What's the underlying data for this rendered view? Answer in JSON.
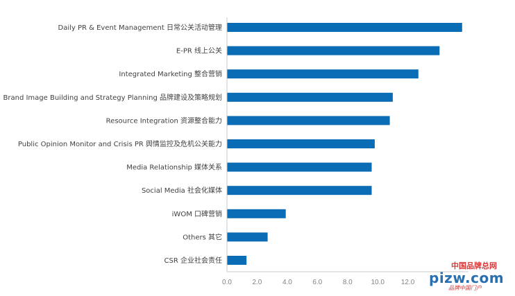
{
  "chart_data": {
    "type": "bar",
    "orientation": "horizontal",
    "categories": [
      "Daily PR & Event Management 日常公关活动管理",
      "E-PR 线上公关",
      "Integrated Marketing 整合营销",
      "Brand Image Building and Strategy Planning 品牌建设及策略规划",
      "Resource Integration 资源整合能力",
      "Public Opinion Monitor and Crisis PR 舆情监控及危机公关能力",
      "Media Relationship 媒体关系",
      "Social Media 社会化媒体",
      "iWOM 口碑营销",
      "Others 其它",
      "CSR 企业社会责任"
    ],
    "values": [
      15.6,
      14.1,
      12.7,
      11.0,
      10.8,
      9.8,
      9.6,
      9.6,
      3.9,
      2.7,
      1.3
    ],
    "xlim": [
      0,
      16
    ],
    "xticks": [
      "0.0",
      "2.0",
      "4.0",
      "6.0",
      "8.0",
      "10.0",
      "12.0"
    ],
    "bar_color": "#0a6cb5",
    "grid": false,
    "title": "",
    "xlabel": "",
    "ylabel": ""
  },
  "watermark": {
    "top_text": "中国品牌总网",
    "main_text": "pizw.com",
    "sub_text": "品牌中国门户"
  }
}
